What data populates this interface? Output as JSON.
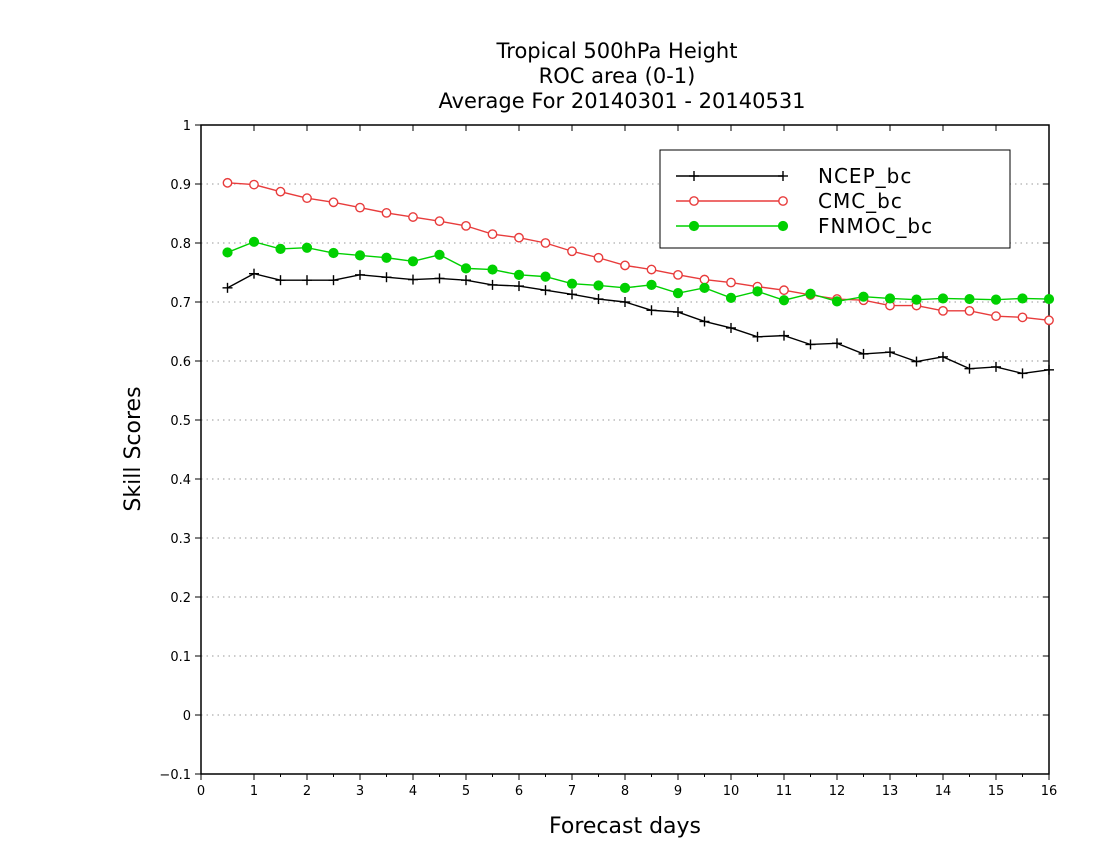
{
  "chart_data": {
    "type": "line",
    "title": [
      "Tropical 500hPa Height",
      "ROC area (0-1)",
      "Average For 20140301 - 20140531"
    ],
    "xlabel": "Forecast days",
    "ylabel": "Skill Scores",
    "xlim": [
      0,
      16
    ],
    "ylim": [
      -0.1,
      1
    ],
    "xticks": [
      "0",
      "1",
      "2",
      "3",
      "4",
      "5",
      "6",
      "7",
      "8",
      "9",
      "10",
      "11",
      "12",
      "13",
      "14",
      "15",
      "16"
    ],
    "yticks": [
      "−0.1",
      "0",
      "0.1",
      "0.2",
      "0.3",
      "0.4",
      "0.5",
      "0.6",
      "0.7",
      "0.8",
      "0.9",
      "1"
    ],
    "grid": true,
    "legend_position": "top-right",
    "x": [
      0.5,
      1,
      1.5,
      2,
      2.5,
      3,
      3.5,
      4,
      4.5,
      5,
      5.5,
      6,
      6.5,
      7,
      7.5,
      8,
      8.5,
      9,
      9.5,
      10,
      10.5,
      11,
      11.5,
      12,
      12.5,
      13,
      13.5,
      14,
      14.5,
      15,
      15.5,
      16
    ],
    "series": [
      {
        "name": "NCEP_bc",
        "color": "#000000",
        "marker": "plus",
        "values": [
          0.724,
          0.748,
          0.737,
          0.737,
          0.737,
          0.746,
          0.742,
          0.738,
          0.74,
          0.737,
          0.729,
          0.727,
          0.72,
          0.713,
          0.705,
          0.7,
          0.686,
          0.683,
          0.667,
          0.656,
          0.641,
          0.643,
          0.628,
          0.63,
          0.612,
          0.615,
          0.599,
          0.607,
          0.587,
          0.59,
          0.579,
          0.585
        ]
      },
      {
        "name": "CMC_bc",
        "color": "#e83c3c",
        "marker": "open-circle",
        "values": [
          0.902,
          0.899,
          0.887,
          0.876,
          0.869,
          0.86,
          0.851,
          0.844,
          0.837,
          0.829,
          0.815,
          0.809,
          0.8,
          0.786,
          0.775,
          0.762,
          0.755,
          0.746,
          0.738,
          0.733,
          0.726,
          0.72,
          0.712,
          0.705,
          0.703,
          0.694,
          0.694,
          0.685,
          0.685,
          0.676,
          0.674,
          0.669
        ]
      },
      {
        "name": "FNMOC_bc",
        "color": "#00d000",
        "marker": "filled-circle",
        "values": [
          0.784,
          0.802,
          0.79,
          0.792,
          0.783,
          0.779,
          0.775,
          0.769,
          0.78,
          0.757,
          0.755,
          0.746,
          0.743,
          0.731,
          0.728,
          0.724,
          0.729,
          0.715,
          0.724,
          0.707,
          0.718,
          0.703,
          0.714,
          0.701,
          0.709,
          0.706,
          0.704,
          0.706,
          0.705,
          0.704,
          0.706,
          0.705
        ]
      }
    ]
  }
}
